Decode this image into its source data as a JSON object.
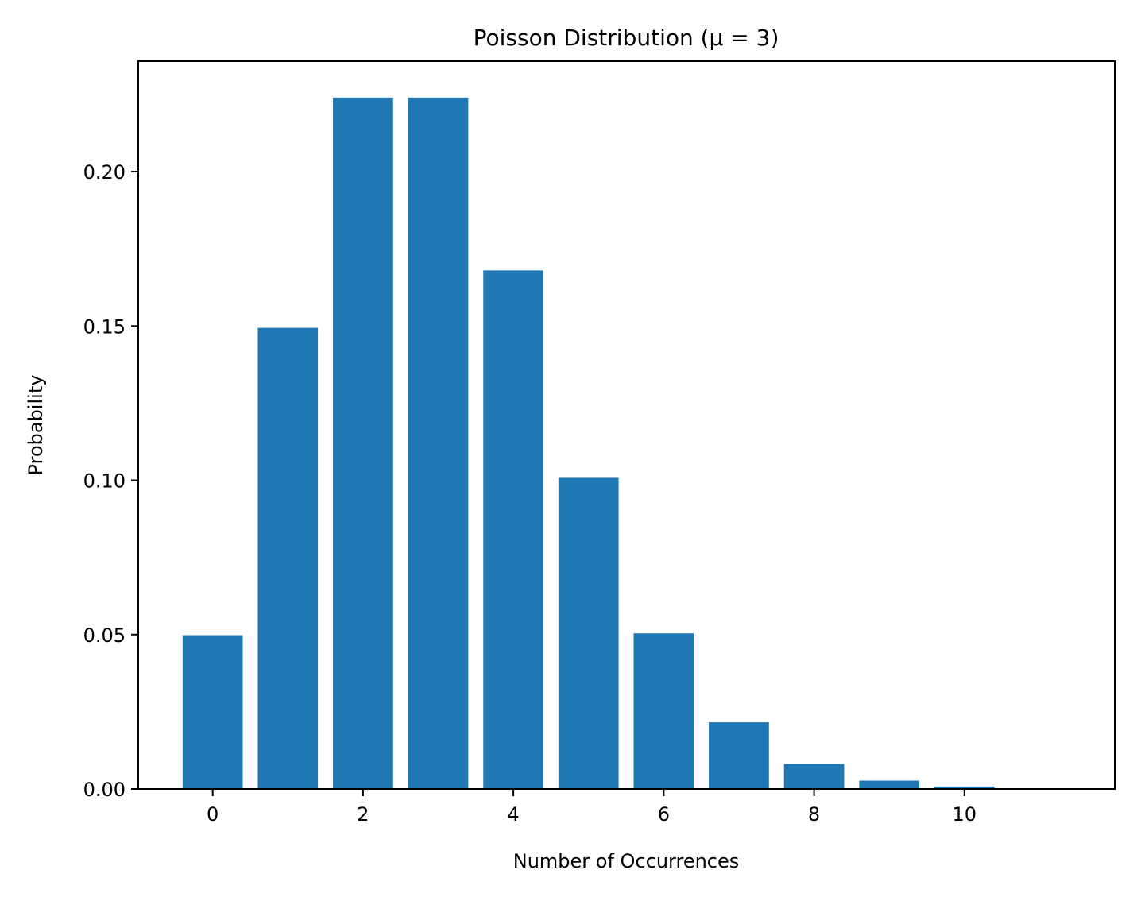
{
  "chart_data": {
    "type": "bar",
    "title": "Poisson Distribution (μ = 3)",
    "xlabel": "Number of Occurrences",
    "ylabel": "Probability",
    "categories": [
      0,
      1,
      2,
      3,
      4,
      5,
      6,
      7,
      8,
      9,
      10,
      11
    ],
    "values": [
      0.0498,
      0.1494,
      0.224,
      0.224,
      0.168,
      0.1008,
      0.0504,
      0.0216,
      0.0081,
      0.0027,
      0.0008,
      0.0002
    ],
    "xlim": [
      -0.99,
      12.0
    ],
    "ylim": [
      0,
      0.2358
    ],
    "xticks": [
      0,
      2,
      4,
      6,
      8,
      10
    ],
    "xtick_labels": [
      "0",
      "2",
      "4",
      "6",
      "8",
      "10"
    ],
    "yticks": [
      0,
      0.05,
      0.1,
      0.15,
      0.2
    ],
    "ytick_labels": [
      "0.00",
      "0.05",
      "0.10",
      "0.15",
      "0.20"
    ],
    "bar_width": 0.8,
    "bar_color": "#1f77b4",
    "grid": false,
    "legend": "none"
  }
}
